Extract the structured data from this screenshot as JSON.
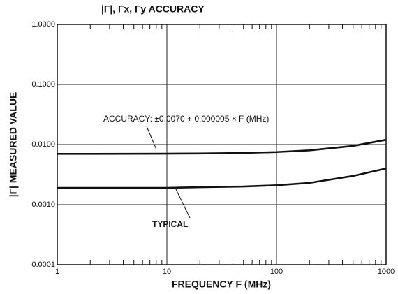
{
  "chart_data": {
    "type": "line",
    "title": "|Γ|, Γx, Γy ACCURACY",
    "xlabel": "FREQUENCY F (MHz)",
    "ylabel": "|Γ| MEASURED VALUE",
    "xscale": "log",
    "yscale": "log",
    "x": [
      1,
      2,
      5,
      10,
      20,
      50,
      100,
      200,
      500,
      1000
    ],
    "series": [
      {
        "name": "ACCURACY: ±0.0070 + 0.000005 × F (MHz)",
        "color": "#111111",
        "values": [
          0.00701,
          0.00701,
          0.00703,
          0.00705,
          0.0071,
          0.00725,
          0.0075,
          0.008,
          0.0095,
          0.012
        ]
      },
      {
        "name": "TYPICAL",
        "color": "#111111",
        "values": [
          0.0019,
          0.0019,
          0.0019,
          0.0019,
          0.00195,
          0.002,
          0.0021,
          0.0023,
          0.003,
          0.004
        ]
      }
    ],
    "xlim": [
      1,
      1000
    ],
    "xticks": [
      1,
      10,
      100,
      1000
    ],
    "ylim": [
      0.0001,
      1
    ],
    "yticks": [
      {
        "value": 0.0001,
        "label": "0.0001"
      },
      {
        "value": 0.001,
        "label": "0.0010"
      },
      {
        "value": 0.01,
        "label": "0.0100"
      },
      {
        "value": 0.1,
        "label": "0.1000"
      },
      {
        "value": 1,
        "label": "1.0000"
      }
    ],
    "grid": true
  }
}
